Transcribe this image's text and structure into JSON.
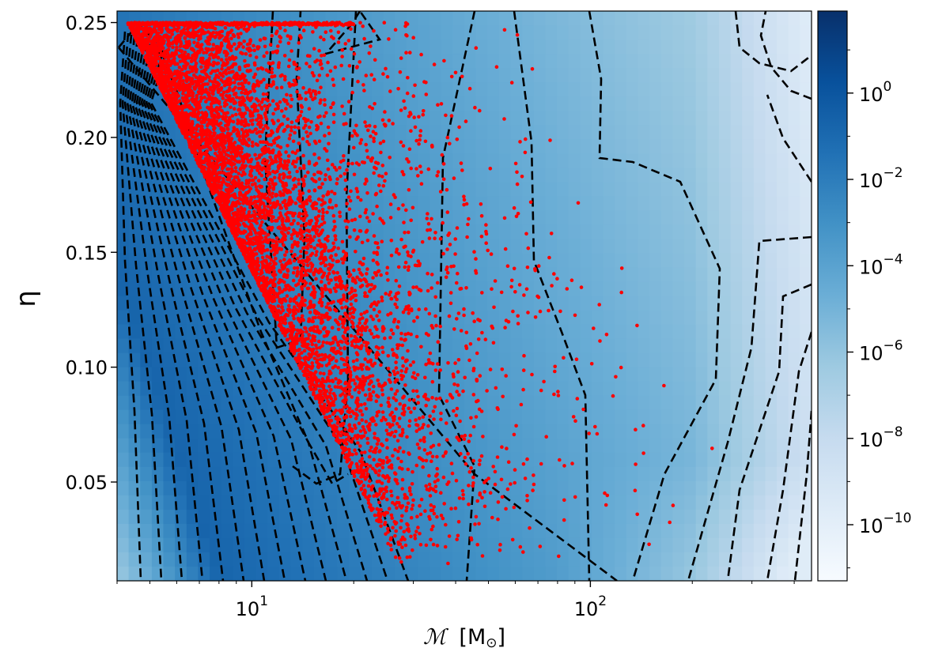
{
  "chart_data": {
    "type": "heatmap",
    "overlay": "scatter",
    "x_axis": {
      "label_symbol": "ℳ",
      "label_unit": "[M",
      "label_unit_sub": "⊙",
      "label_close": "]",
      "scale": "log",
      "range": [
        4,
        450
      ],
      "ticks": [
        {
          "value": 10,
          "base": "10",
          "exp": "1"
        },
        {
          "value": 100,
          "base": "10",
          "exp": "2"
        }
      ]
    },
    "y_axis": {
      "label": "η",
      "scale": "linear",
      "range": [
        0.007,
        0.255
      ],
      "ticks": [
        {
          "value": 0.05,
          "label": "0.05"
        },
        {
          "value": 0.1,
          "label": "0.10"
        },
        {
          "value": 0.15,
          "label": "0.15"
        },
        {
          "value": 0.2,
          "label": "0.20"
        },
        {
          "value": 0.25,
          "label": "0.25"
        }
      ]
    },
    "colorbar": {
      "scale": "log",
      "range_exp": [
        -11.3,
        1.9
      ],
      "colormap": "Blues",
      "ticks": [
        {
          "exp": -10,
          "base": "10",
          "label": "−10"
        },
        {
          "exp": -8,
          "base": "10",
          "label": "−8"
        },
        {
          "exp": -6,
          "base": "10",
          "label": "−6"
        },
        {
          "exp": -4,
          "base": "10",
          "label": "−4"
        },
        {
          "exp": -2,
          "base": "10",
          "label": "−2"
        },
        {
          "exp": 0,
          "base": "10",
          "label": "0"
        }
      ]
    },
    "contours": {
      "style": "dashed",
      "color": "#000000"
    },
    "scatter": {
      "color": "#ff0000",
      "approx_points": 6000
    },
    "grid": false,
    "legend": "none"
  }
}
